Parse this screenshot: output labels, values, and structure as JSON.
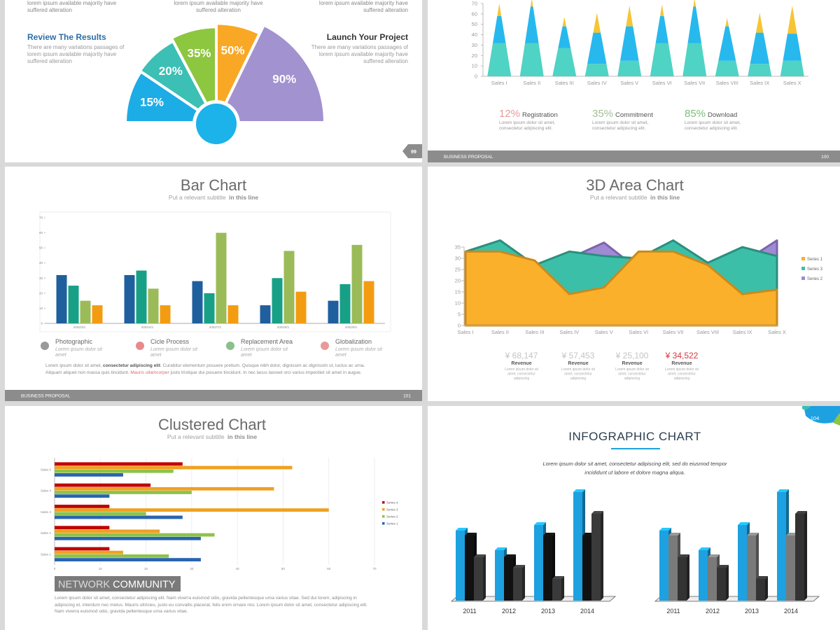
{
  "slides": [
    {
      "page": "99",
      "top_texts": [
        [
          "lorem ipsum available  majority have",
          "suffered alteration"
        ],
        [
          "lorem ipsum available  majority have",
          "suffered alteration"
        ],
        [
          "lorem ipsum available  majority have",
          "suffered alteration"
        ]
      ],
      "blocks": [
        {
          "title": "Review The Results",
          "lines": [
            "There are many variations passages of",
            "lorem ipsum available  majority have",
            "suffered alteration"
          ]
        },
        {
          "title": "Launch Your Project",
          "lines": [
            "There are many variations passages of",
            "lorem ipsum available  majority have",
            "suffered alteration"
          ]
        }
      ],
      "chart": {
        "type": "fan",
        "values": [
          15,
          20,
          35,
          50,
          90
        ],
        "value_labels": [
          "15%",
          "20%",
          "35%",
          "50%",
          "90%"
        ],
        "colors": [
          "#1cace6",
          "#3cbfb4",
          "#8dc63f",
          "#f9a825",
          "#a292cf"
        ],
        "hub_color": "#1cb2ea"
      }
    },
    {
      "page": "100",
      "footer": "BUSINESS PROPOSAL",
      "chart": {
        "type": "spike",
        "categories": [
          "Sales I",
          "Sales II",
          "Sales III",
          "Sales IV",
          "Sales V",
          "Sales VI",
          "Sales VII",
          "Sales VIII",
          "Sales IX",
          "Sales X"
        ],
        "series": [
          {
            "color": "#4fd3c4",
            "values": [
              32,
              32,
              27,
              12,
              15,
              32,
              32,
              15,
              12,
              15
            ]
          },
          {
            "color": "#27b8ee",
            "values": [
              26,
              35,
              21,
              30,
              33,
              26,
              35,
              33,
              30,
              26
            ]
          },
          {
            "color": "#f5c533",
            "values": [
              12,
              8,
              9,
              19,
              20,
              11,
              8,
              8,
              19,
              27
            ]
          }
        ],
        "ylim": [
          0,
          70
        ],
        "yticks": [
          0,
          10,
          20,
          30,
          40,
          50,
          60,
          70
        ]
      },
      "stats": [
        {
          "value": "12%",
          "label": "Registration",
          "color": "#e79a9a",
          "lines": [
            "Lorem ipsum dolor sit amet,",
            "consectetur adipiscing elit."
          ]
        },
        {
          "value": "35%",
          "label": "Commitment",
          "color": "#a5bf92",
          "lines": [
            "Lorem ipsum dolor sit amet,",
            "consectetur adipiscing elit."
          ]
        },
        {
          "value": "85%",
          "label": "Download",
          "color": "#7cbf7c",
          "lines": [
            "Lorem ipsum dolor sit amet,",
            "consectetur adipiscing elit."
          ]
        }
      ]
    },
    {
      "page": "101",
      "footer": "BUSINESS PROPOSAL",
      "title": "Bar Chart",
      "subtitle": {
        "text": "Put a relevant subtitle ",
        "emphasis": "in this line"
      },
      "chart": {
        "type": "bar",
        "categories": [
          "2002/3/1",
          "2002/4/1",
          "2002/7/1",
          "2002/8/1",
          "2002/9/1"
        ],
        "series": [
          {
            "color": "#1f5f9e",
            "values": [
              32,
              32,
              28,
              12,
              15
            ]
          },
          {
            "color": "#17a085",
            "values": [
              25,
              35,
              20,
              30,
              26
            ]
          },
          {
            "color": "#9bbb59",
            "values": [
              15,
              23,
              60,
              48,
              52
            ]
          },
          {
            "color": "#f39c12",
            "values": [
              12,
              12,
              12,
              21,
              28
            ]
          }
        ],
        "ylim": [
          0,
          70
        ],
        "yticks": [
          0,
          10,
          20,
          30,
          40,
          50,
          60,
          70
        ]
      },
      "features": [
        {
          "title": "Photographic",
          "lines": [
            "Lorem ipsum dolor sit",
            "amet"
          ]
        },
        {
          "title": "Cicle Process",
          "lines": [
            "Lorem ipsum dolor sit",
            "amet"
          ]
        },
        {
          "title": "Replacement Area",
          "lines": [
            "Lorem ipsum dolor sit",
            "amet"
          ]
        },
        {
          "title": "Globalization",
          "lines": [
            "Lorem ipsum dolor sit",
            "amet"
          ]
        }
      ],
      "paragraph": [
        {
          "text": "Lorem ipsum dolor sit amet, "
        },
        {
          "text": "consectetur adipiscing elit",
          "emphasis": "bold"
        },
        {
          "text": ". Curabitur elementum posuere pretium. Quisque nibh dolor, dignissim ac dignissim ut, luctus ac urna. Aliquam aliquet non massa quis tincidunt. "
        },
        {
          "text": "Mauris ullamcorper",
          "emphasis": "accent"
        },
        {
          "text": " justo tristique dui posuere tincidunt. In nec lacus laoreet orci varius imperdiet sit amet in augue."
        }
      ]
    },
    {
      "title": "3D Area Chart",
      "subtitle": {
        "text": "Put a relevant subtitle ",
        "emphasis": "in this line"
      },
      "chart": {
        "type": "area",
        "categories": [
          "Sales I",
          "Sales II",
          "Sales III",
          "Sales IV",
          "Sales V",
          "Sales VI",
          "Sales VII",
          "Sales VIII",
          "Sales IX",
          "Sales X"
        ],
        "series": [
          {
            "name": "Series 1",
            "color": "#fbb02b",
            "edge": "#c98a1c",
            "values": [
              33,
              33,
              29,
              14,
              17,
              33,
              33,
              27,
              14,
              16
            ]
          },
          {
            "name": "Series 3",
            "color": "#3cbfa8",
            "edge": "#2b8f7e",
            "values": [
              33,
              38,
              27,
              33,
              31,
              30,
              38,
              28,
              35,
              31
            ]
          },
          {
            "name": "Series 2",
            "color": "#a08ad4",
            "edge": "#7a66ac",
            "values": [
              20,
              25,
              20,
              30,
              37,
              25,
              30,
              22,
              28,
              38
            ]
          }
        ],
        "ylim": [
          0,
          35
        ],
        "yticks": [
          0,
          5,
          10,
          15,
          20,
          25,
          30,
          35
        ]
      },
      "revenues": [
        {
          "value": "¥ 68,147",
          "label": "Revenue",
          "color": "#c4c4c4",
          "lines": [
            "Lorem ipsum dolor sit",
            "amet, consectetur",
            "adipiscing"
          ]
        },
        {
          "value": "¥ 57,453",
          "label": "Revenue",
          "color": "#c4c4c4",
          "lines": [
            "Lorem ipsum dolor sit",
            "amet, consectetur",
            "adipiscing"
          ]
        },
        {
          "value": "¥ 25,100",
          "label": "Revenue",
          "color": "#c4c4c4",
          "lines": [
            "Lorem ipsum dolor sit",
            "amet, consectetur",
            "adipiscing"
          ]
        },
        {
          "value": "¥ 34,522",
          "label": "Revenue",
          "color": "#d9363e",
          "lines": [
            "Lorem ipsum dolor sit",
            "amet, consectetur",
            "adipiscing"
          ]
        }
      ]
    },
    {
      "title": "Clustered Chart",
      "subtitle": {
        "text": "Put a relevant subtitle ",
        "emphasis": "in this line"
      },
      "chart": {
        "type": "hbar",
        "categories": [
          "Sales 1",
          "Sales 2",
          "Sales 3",
          "Sales 4",
          "Sales 5"
        ],
        "series": [
          {
            "name": "Series 4",
            "color": "#c00000",
            "values": [
              12,
              12,
              12,
              21,
              28
            ]
          },
          {
            "name": "Series 3",
            "color": "#f0a020",
            "values": [
              15,
              23,
              60,
              48,
              52
            ]
          },
          {
            "name": "Series 2",
            "color": "#8cc34a",
            "values": [
              25,
              35,
              20,
              30,
              26
            ]
          },
          {
            "name": "Series 1",
            "color": "#2a64ae",
            "values": [
              32,
              32,
              28,
              12,
              15
            ]
          }
        ],
        "xlim": [
          0,
          70
        ],
        "xticks": [
          0,
          10,
          20,
          30,
          40,
          50,
          60,
          70
        ]
      },
      "banner": {
        "light": "NETWORK",
        "bold": "COMMUNITY"
      },
      "paragraph": [
        {
          "text": "Lorem ipsum dolor sit amet, consectetur adipiscing elit. Nam viverra euismod odio, gravida pellentesque urna varius vitae. Sed dui lorem, adipiscing in adipiscing et, interdum nec metus. Mauris ultricies, justo eu convallis placerat, felis enim ornare nisi. Lorem ipsum dolor sit amet, consectetur adipiscing elit. Nam viverra euismod odio, gravida pellentesque urna varius vitae."
        }
      ]
    },
    {
      "page": "104",
      "title": "INFOGRAPHIC CHART",
      "intro": [
        "Lorem ipsum dolor sit amet, consectetur adipiscing elit, sed do eiusmod tempor",
        "incididunt ut labore et dolore magna aliqua."
      ],
      "charts": [
        {
          "type": "bar3d",
          "categories": [
            "2011",
            "2012",
            "2013",
            "2014"
          ],
          "series": [
            {
              "color": "#1da1e0",
              "values": [
                100,
                72,
                108,
                155
              ]
            },
            {
              "color": "#111111",
              "values": [
                93,
                62,
                93,
                93
              ]
            },
            {
              "color": "#3a3a3a",
              "values": [
                62,
                47,
                31,
                124
              ]
            }
          ]
        },
        {
          "type": "bar3d",
          "categories": [
            "2011",
            "2012",
            "2013",
            "2014"
          ],
          "series": [
            {
              "color": "#1da1e0",
              "values": [
                100,
                72,
                108,
                155
              ]
            },
            {
              "color": "#7a7a7a",
              "values": [
                93,
                62,
                93,
                93
              ]
            },
            {
              "color": "#333333",
              "values": [
                62,
                47,
                31,
                124
              ]
            }
          ]
        }
      ]
    }
  ]
}
